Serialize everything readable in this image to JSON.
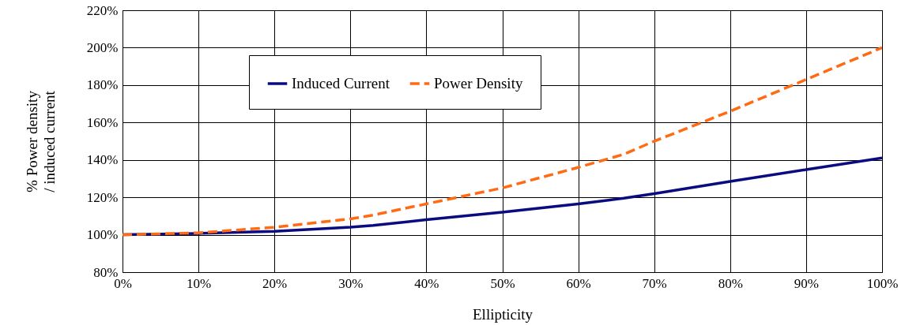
{
  "chart_data": {
    "type": "line",
    "xlabel": "Ellipticity",
    "ylabel": "% Power density\n/ induced current",
    "x": [
      0,
      10,
      20,
      30,
      33,
      40,
      50,
      60,
      66,
      70,
      80,
      90,
      100
    ],
    "series": [
      {
        "name": "Induced Current",
        "color": "#0b0b80",
        "line_style": "solid",
        "values": [
          100,
          100.7,
          101.8,
          104,
          105,
          108,
          112,
          116.5,
          119.5,
          122,
          128.5,
          134.8,
          141
        ]
      },
      {
        "name": "Power Density",
        "color": "#ff6a13",
        "line_style": "dashed",
        "values": [
          100,
          101,
          104,
          108.5,
          110.5,
          116.5,
          125,
          136,
          143,
          150,
          166,
          183,
          200
        ]
      }
    ],
    "xlim": [
      0,
      100
    ],
    "xticks": [
      {
        "value": 0,
        "label": "0%"
      },
      {
        "value": 10,
        "label": "10%"
      },
      {
        "value": 20,
        "label": "20%"
      },
      {
        "value": 30,
        "label": "30%"
      },
      {
        "value": 40,
        "label": "40%"
      },
      {
        "value": 50,
        "label": "50%"
      },
      {
        "value": 60,
        "label": "60%"
      },
      {
        "value": 70,
        "label": "70%"
      },
      {
        "value": 80,
        "label": "80%"
      },
      {
        "value": 90,
        "label": "90%"
      },
      {
        "value": 100,
        "label": "100%"
      }
    ],
    "ylim": [
      80,
      220
    ],
    "yticks": [
      {
        "value": 80,
        "label": "80%"
      },
      {
        "value": 100,
        "label": "100%"
      },
      {
        "value": 120,
        "label": "120%"
      },
      {
        "value": 140,
        "label": "140%"
      },
      {
        "value": 160,
        "label": "160%"
      },
      {
        "value": 180,
        "label": "180%"
      },
      {
        "value": 200,
        "label": "200%"
      },
      {
        "value": 220,
        "label": "220%"
      }
    ],
    "grid": true,
    "legend": "top left",
    "marker": "none"
  }
}
